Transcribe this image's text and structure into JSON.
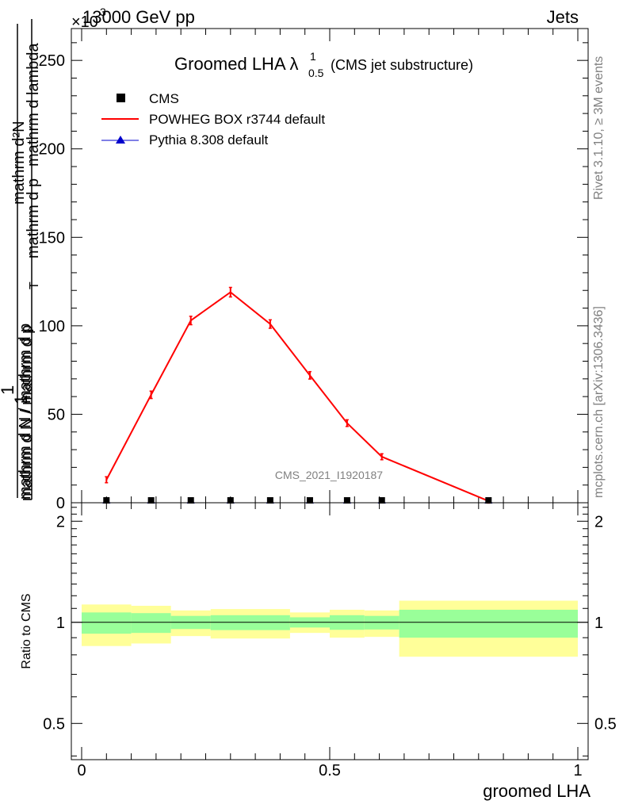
{
  "header": {
    "left": "13000 GeV pp",
    "right": "Jets",
    "exponent": "×10"
  },
  "side_labels": {
    "rivet": "Rivet 3.1.10, ≥ 3M events",
    "mcplots": "mcplots.cern.ch [arXiv:1306.3436]"
  },
  "watermark": "CMS_2021_I1920187",
  "chart_data": [
    {
      "type": "line",
      "title": "Groomed LHA λ",
      "title_sup": "1",
      "title_sub": "0.5",
      "subtitle": "(CMS jet substructure)",
      "ylabel_top": "1",
      "ylabel_denominator": "mathrm d N / mathrm d p",
      "ylabel_numerator": "mathrm d²N",
      "ylabel_numerator_rest": "mathrm d p",
      "ylabel_numerator_tail": "mathrm d lambda",
      "ylabel_sub_T": "T",
      "xlim": [
        0,
        1
      ],
      "ylim": [
        0,
        268
      ],
      "y_ticks": [
        0,
        50,
        100,
        150,
        200,
        250
      ],
      "grid": false,
      "legend_position": "top-left",
      "legend": [
        {
          "label": "CMS",
          "marker": "square",
          "color": "#000000"
        },
        {
          "label": "POWHEG BOX r3744 default",
          "marker": "line",
          "color": "#ff0000"
        },
        {
          "label": "Pythia 8.308 default",
          "marker": "triangle",
          "color": "#0000cc"
        }
      ],
      "series": [
        {
          "name": "POWHEG BOX r3744 default",
          "color": "#ff0000",
          "x": [
            0.05,
            0.14,
            0.22,
            0.3,
            0.38,
            0.46,
            0.535,
            0.605,
            0.82
          ],
          "y": [
            13,
            61,
            103,
            119,
            101,
            72,
            45,
            26,
            1
          ],
          "yerr": [
            0.8,
            1.2,
            1.5,
            1.8,
            1.5,
            1.2,
            1.0,
            0.8,
            0.3
          ]
        },
        {
          "name": "CMS",
          "color": "#000000",
          "x": [
            0.05,
            0.14,
            0.22,
            0.3,
            0.38,
            0.46,
            0.535,
            0.605,
            0.82
          ],
          "y": [
            0,
            0,
            0,
            0,
            0,
            0,
            0,
            0,
            0
          ]
        },
        {
          "name": "Pythia 8.308 default",
          "color": "#0000cc",
          "x": [
            0.05,
            0.14,
            0.22,
            0.3,
            0.38,
            0.46,
            0.535,
            0.605,
            0.82
          ],
          "y": [
            0,
            0,
            0,
            0,
            0,
            0,
            0,
            0,
            0
          ]
        }
      ]
    },
    {
      "type": "area",
      "ylabel": "Ratio to CMS",
      "xlabel": "groomed LHA",
      "xlim": [
        0,
        1
      ],
      "ylim": [
        0.39,
        2.27
      ],
      "y_ticks": [
        0.5,
        1,
        2
      ],
      "x_ticks": [
        0,
        0.5,
        1
      ],
      "x_tick_labels": [
        "0",
        "0.5",
        "1"
      ],
      "y_tick_labels": [
        "0.5",
        "1",
        "2"
      ],
      "reference_line": 1,
      "band_colors": {
        "outer": "#ffff99",
        "inner": "#99ff99"
      },
      "bins": [
        {
          "lo": 0.0,
          "hi": 0.1,
          "outer": [
            0.85,
            1.13
          ],
          "inner": [
            0.925,
            1.07
          ]
        },
        {
          "lo": 0.1,
          "hi": 0.18,
          "outer": [
            0.865,
            1.12
          ],
          "inner": [
            0.93,
            1.065
          ]
        },
        {
          "lo": 0.18,
          "hi": 0.26,
          "outer": [
            0.91,
            1.085
          ],
          "inner": [
            0.955,
            1.045
          ]
        },
        {
          "lo": 0.26,
          "hi": 0.42,
          "outer": [
            0.895,
            1.095
          ],
          "inner": [
            0.948,
            1.05
          ]
        },
        {
          "lo": 0.42,
          "hi": 0.5,
          "outer": [
            0.93,
            1.07
          ],
          "inner": [
            0.965,
            1.035
          ]
        },
        {
          "lo": 0.5,
          "hi": 0.57,
          "outer": [
            0.9,
            1.09
          ],
          "inner": [
            0.95,
            1.05
          ]
        },
        {
          "lo": 0.57,
          "hi": 0.64,
          "outer": [
            0.905,
            1.085
          ],
          "inner": [
            0.952,
            1.045
          ]
        },
        {
          "lo": 0.64,
          "hi": 1.0,
          "outer": [
            0.79,
            1.16
          ],
          "inner": [
            0.9,
            1.09
          ]
        }
      ]
    }
  ]
}
